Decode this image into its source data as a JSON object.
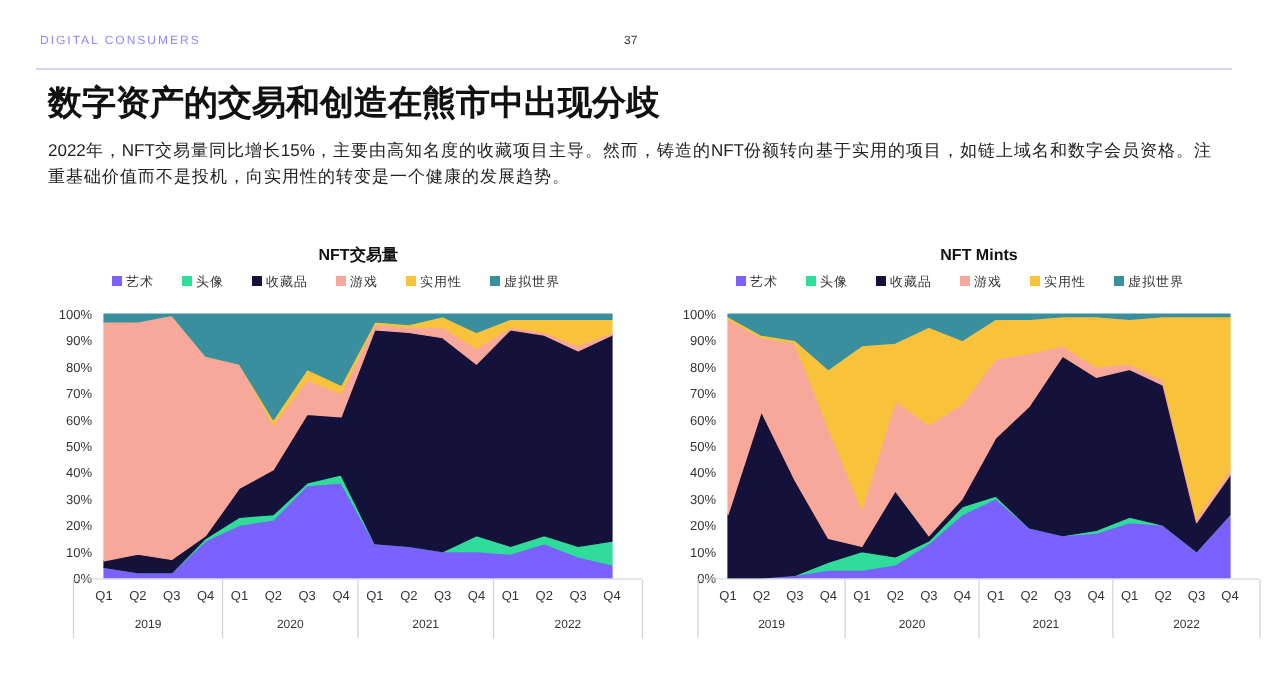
{
  "chart_data": [
    {
      "type": "other",
      "title": "数字资产的交易和创造在熊市中出现分歧",
      "subtitle": "2022年，NFT交易量同比增长15%，主要由高知名度的收藏项目主导。然而，铸造的NFT份额转向基于实用的项目，如链上域名和数字会员资格。注重基础价值而不是投机，向实用性的转变是一个健康的发展趋势。",
      "annotations": [
        "DIGITAL CONSUMERS",
        "37"
      ]
    },
    {
      "type": "area",
      "stacked": true,
      "title": "NFT交易量",
      "legend": "top",
      "categories": [
        "Q1",
        "Q2",
        "Q3",
        "Q4",
        "Q1",
        "Q2",
        "Q3",
        "Q4",
        "Q1",
        "Q2",
        "Q3",
        "Q4",
        "Q1",
        "Q2",
        "Q3",
        "Q4"
      ],
      "annotations": [
        "2019",
        "2020",
        "2021",
        "2022"
      ],
      "ylim": [
        0,
        100
      ],
      "yticks": [
        {
          "value": 0,
          "label": "0%"
        },
        {
          "value": 10,
          "label": "10%"
        },
        {
          "value": 20,
          "label": "20%"
        },
        {
          "value": 30,
          "label": "30%"
        },
        {
          "value": 40,
          "label": "40%"
        },
        {
          "value": 50,
          "label": "50%"
        },
        {
          "value": 60,
          "label": "60%"
        },
        {
          "value": 70,
          "label": "70%"
        },
        {
          "value": 80,
          "label": "80%"
        },
        {
          "value": 90,
          "label": "90%"
        },
        {
          "value": 100,
          "label": "100%"
        }
      ],
      "series": [
        {
          "name": "艺术",
          "color": "#7b61ff",
          "values": [
            4,
            2,
            2,
            14,
            20,
            22,
            35,
            36,
            13,
            12,
            10,
            10,
            9,
            13,
            8,
            5
          ]
        },
        {
          "name": "头像",
          "color": "#2fdc9a",
          "values": [
            0,
            0,
            0,
            1,
            3,
            2,
            1,
            3,
            0,
            0,
            0,
            6,
            3,
            3,
            4,
            9
          ]
        },
        {
          "name": "收藏品",
          "color": "#14123a",
          "values": [
            2.5,
            7,
            5,
            1,
            11,
            17,
            26,
            22,
            81,
            81,
            81,
            65,
            82,
            76,
            74,
            78
          ]
        },
        {
          "name": "游戏",
          "color": "#f8a89b",
          "values": [
            90.5,
            88,
            92.5,
            68,
            47,
            17,
            13,
            9,
            2,
            2,
            4,
            6,
            1,
            1,
            2,
            1
          ]
        },
        {
          "name": "实用性",
          "color": "#f8c33a",
          "values": [
            0,
            0,
            0,
            0,
            0,
            2,
            4,
            3,
            1,
            1,
            4,
            6,
            3,
            5,
            10,
            5
          ]
        },
        {
          "name": "虚拟世界",
          "color": "#3a8f9f",
          "values": [
            3,
            3,
            0.5,
            16,
            19,
            40,
            21,
            27,
            3,
            4,
            1,
            7,
            2,
            2,
            2,
            2
          ]
        }
      ]
    },
    {
      "type": "area",
      "stacked": true,
      "title": "NFT Mints",
      "legend": "top",
      "categories": [
        "Q1",
        "Q2",
        "Q3",
        "Q4",
        "Q1",
        "Q2",
        "Q3",
        "Q4",
        "Q1",
        "Q2",
        "Q3",
        "Q4",
        "Q1",
        "Q2",
        "Q3",
        "Q4"
      ],
      "annotations": [
        "2019",
        "2020",
        "2021",
        "2022"
      ],
      "ylim": [
        0,
        100
      ],
      "yticks": [
        {
          "value": 0,
          "label": "0%"
        },
        {
          "value": 10,
          "label": "10%"
        },
        {
          "value": 20,
          "label": "20%"
        },
        {
          "value": 30,
          "label": "30%"
        },
        {
          "value": 40,
          "label": "40%"
        },
        {
          "value": 50,
          "label": "50%"
        },
        {
          "value": 60,
          "label": "60%"
        },
        {
          "value": 70,
          "label": "70%"
        },
        {
          "value": 80,
          "label": "80%"
        },
        {
          "value": 90,
          "label": "90%"
        },
        {
          "value": 100,
          "label": "100%"
        }
      ],
      "series": [
        {
          "name": "艺术",
          "color": "#7b61ff",
          "values": [
            0,
            0,
            1,
            3,
            3,
            5,
            13,
            24,
            30,
            19,
            16,
            17,
            21,
            20,
            10,
            24
          ]
        },
        {
          "name": "头像",
          "color": "#2fdc9a",
          "values": [
            0,
            0,
            0,
            3,
            7,
            3,
            1,
            3,
            1,
            0,
            0,
            1,
            2,
            0,
            0,
            0
          ]
        },
        {
          "name": "收藏品",
          "color": "#14123a",
          "values": [
            24,
            63,
            36,
            9,
            2,
            25,
            2,
            3,
            22,
            46,
            68,
            58,
            56,
            53,
            11,
            15
          ]
        },
        {
          "name": "游戏",
          "color": "#f8a89b",
          "values": [
            74,
            28,
            52,
            42,
            14,
            34,
            42,
            36,
            30,
            20,
            4,
            4,
            2,
            2,
            2,
            2
          ]
        },
        {
          "name": "实用性",
          "color": "#f8c33a",
          "values": [
            1,
            1,
            1,
            22,
            62,
            22,
            37,
            24,
            15,
            13,
            11,
            19,
            17,
            24,
            76,
            58
          ]
        },
        {
          "name": "虚拟世界",
          "color": "#3a8f9f",
          "values": [
            1,
            8,
            10,
            21,
            12,
            11,
            5,
            10,
            2,
            2,
            1,
            1,
            2,
            1,
            1,
            1
          ]
        }
      ]
    }
  ]
}
